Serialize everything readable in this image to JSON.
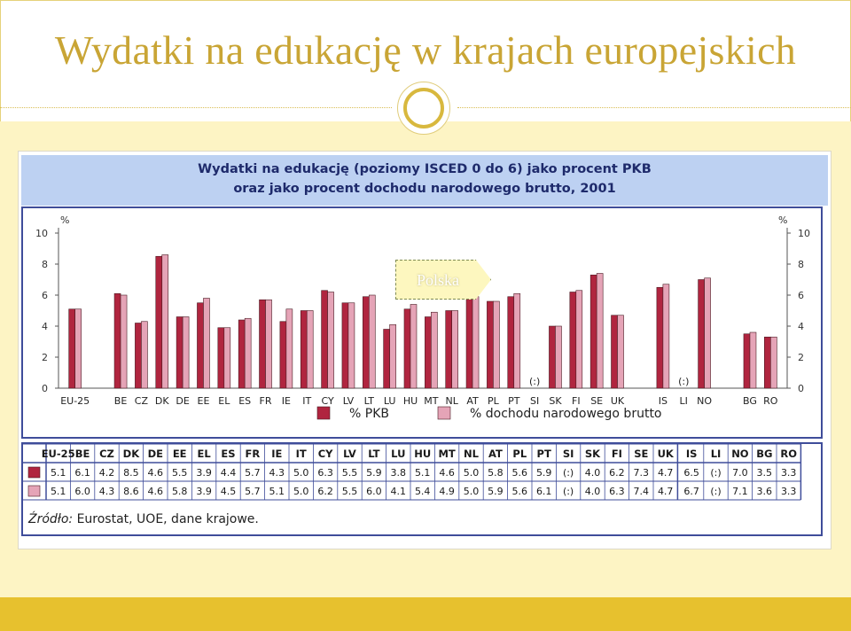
{
  "slide": {
    "title": "Wydatki na edukację w krajach europejskich"
  },
  "figure": {
    "title_line1": "Wydatki na edukację (poziomy ISCED 0 do 6) jako procent PKB",
    "title_line2": "oraz jako procent dochodu narodowego brutto, 2001",
    "callout": "Polska",
    "source_label": "Źródło:",
    "source_text": "Eurostat, UOE, dane krajowe."
  },
  "colors": {
    "title": "#c9a535",
    "band": "#fdf4c4",
    "footer": "#e7c12e",
    "header_bg": "#bdd1f2",
    "header_text": "#1e2a6b",
    "frame": "#3f4d9a",
    "series_gdp": "#b0253f",
    "series_gni": "#e5a4b7"
  },
  "chart_data": {
    "type": "bar",
    "unit": "%",
    "ylim": [
      0,
      10
    ],
    "yticks": [
      0,
      2,
      4,
      6,
      8,
      10
    ],
    "missing_label": "(:)",
    "categories": [
      "EU-25",
      "BE",
      "CZ",
      "DK",
      "DE",
      "EE",
      "EL",
      "ES",
      "FR",
      "IE",
      "IT",
      "CY",
      "LV",
      "LT",
      "LU",
      "HU",
      "MT",
      "NL",
      "AT",
      "PL",
      "PT",
      "SI",
      "SK",
      "FI",
      "SE",
      "UK",
      "IS",
      "LI",
      "NO",
      "BG",
      "RO"
    ],
    "series": [
      {
        "name": "% PKB",
        "color": "#b0253f",
        "values": [
          5.1,
          6.1,
          4.2,
          8.5,
          4.6,
          5.5,
          3.9,
          4.4,
          5.7,
          4.3,
          5.0,
          6.3,
          5.5,
          5.9,
          3.8,
          5.1,
          4.6,
          5.0,
          5.8,
          5.6,
          5.9,
          null,
          4.0,
          6.2,
          7.3,
          4.7,
          6.5,
          null,
          7.0,
          3.5,
          3.3
        ]
      },
      {
        "name": "% dochodu narodowego brutto",
        "color": "#e5a4b7",
        "values": [
          5.1,
          6.0,
          4.3,
          8.6,
          4.6,
          5.8,
          3.9,
          4.5,
          5.7,
          5.1,
          5.0,
          6.2,
          5.5,
          6.0,
          4.1,
          5.4,
          4.9,
          5.0,
          5.9,
          5.6,
          6.1,
          null,
          4.0,
          6.3,
          7.4,
          4.7,
          6.7,
          null,
          7.1,
          3.6,
          3.3
        ]
      }
    ],
    "group_breaks_after": [
      "EU-25",
      "UK",
      "NO"
    ],
    "legend_position": "bottom",
    "grid": false
  }
}
